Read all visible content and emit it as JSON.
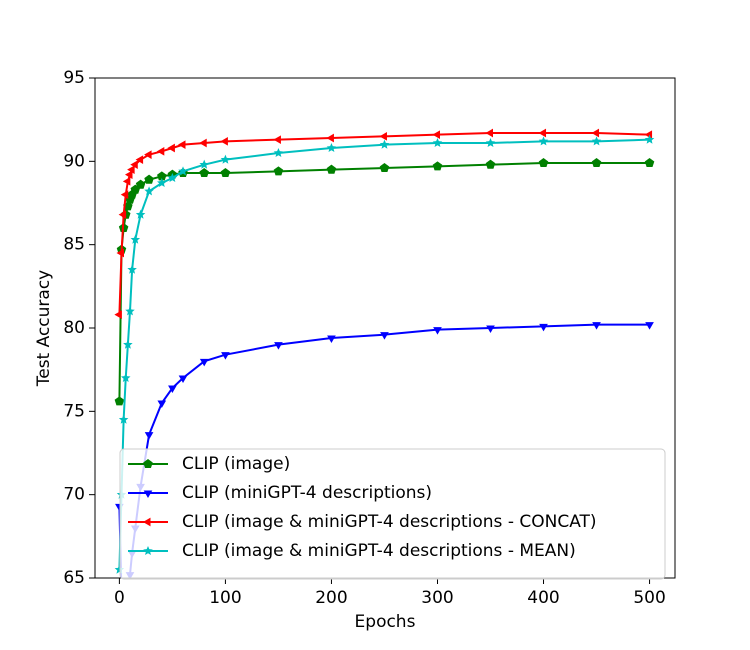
{
  "chart_data": {
    "type": "line",
    "xlabel": "Epochs",
    "ylabel": "Test Accuracy",
    "x": [
      0,
      2,
      4,
      6,
      8,
      10,
      12,
      15,
      20,
      28,
      40,
      50,
      60,
      80,
      100,
      150,
      200,
      250,
      300,
      350,
      400,
      450,
      500
    ],
    "series": [
      {
        "name": "CLIP (image)",
        "color": "#008000",
        "marker": "pentagon",
        "values": [
          75.6,
          84.7,
          86,
          86.8,
          87.3,
          87.7,
          88,
          88.3,
          88.6,
          88.9,
          89.1,
          89.2,
          89.3,
          89.3,
          89.3,
          89.4,
          89.5,
          89.6,
          89.7,
          89.8,
          89.9,
          89.9,
          89.9
        ]
      },
      {
        "name": "CLIP (miniGPT-4 descriptions)",
        "color": "#0000ff",
        "marker": "triangle-down",
        "values": [
          69.3,
          64,
          62,
          62.5,
          63.5,
          65.2,
          66.5,
          68,
          70.5,
          73.6,
          75.5,
          76.4,
          77,
          78,
          78.4,
          79,
          79.4,
          79.6,
          79.9,
          80,
          80.1,
          80.2,
          80.2
        ]
      },
      {
        "name": "CLIP (image & miniGPT-4 descriptions - CONCAT)",
        "color": "#ff0000",
        "marker": "triangle-left",
        "values": [
          80.8,
          84.5,
          86.8,
          88,
          88.8,
          89.2,
          89.5,
          89.8,
          90.1,
          90.4,
          90.6,
          90.8,
          91,
          91.1,
          91.2,
          91.3,
          91.4,
          91.5,
          91.6,
          91.7,
          91.7,
          91.7,
          91.6
        ]
      },
      {
        "name": "CLIP (image & miniGPT-4 descriptions - MEAN)",
        "color": "#00bfbf",
        "marker": "star",
        "values": [
          65.5,
          70,
          74.5,
          77,
          79,
          81,
          83.5,
          85.3,
          86.8,
          88.2,
          88.7,
          89,
          89.4,
          89.8,
          90.1,
          90.5,
          90.8,
          91,
          91.1,
          91.1,
          91.2,
          91.2,
          91.3
        ]
      }
    ],
    "xlim": [
      -23,
      524
    ],
    "ylim": [
      65,
      95
    ],
    "xticks": [
      0,
      100,
      200,
      300,
      400,
      500
    ],
    "yticks": [
      65,
      70,
      75,
      80,
      85,
      90,
      95
    ],
    "grid": false,
    "legend": "lower center"
  }
}
